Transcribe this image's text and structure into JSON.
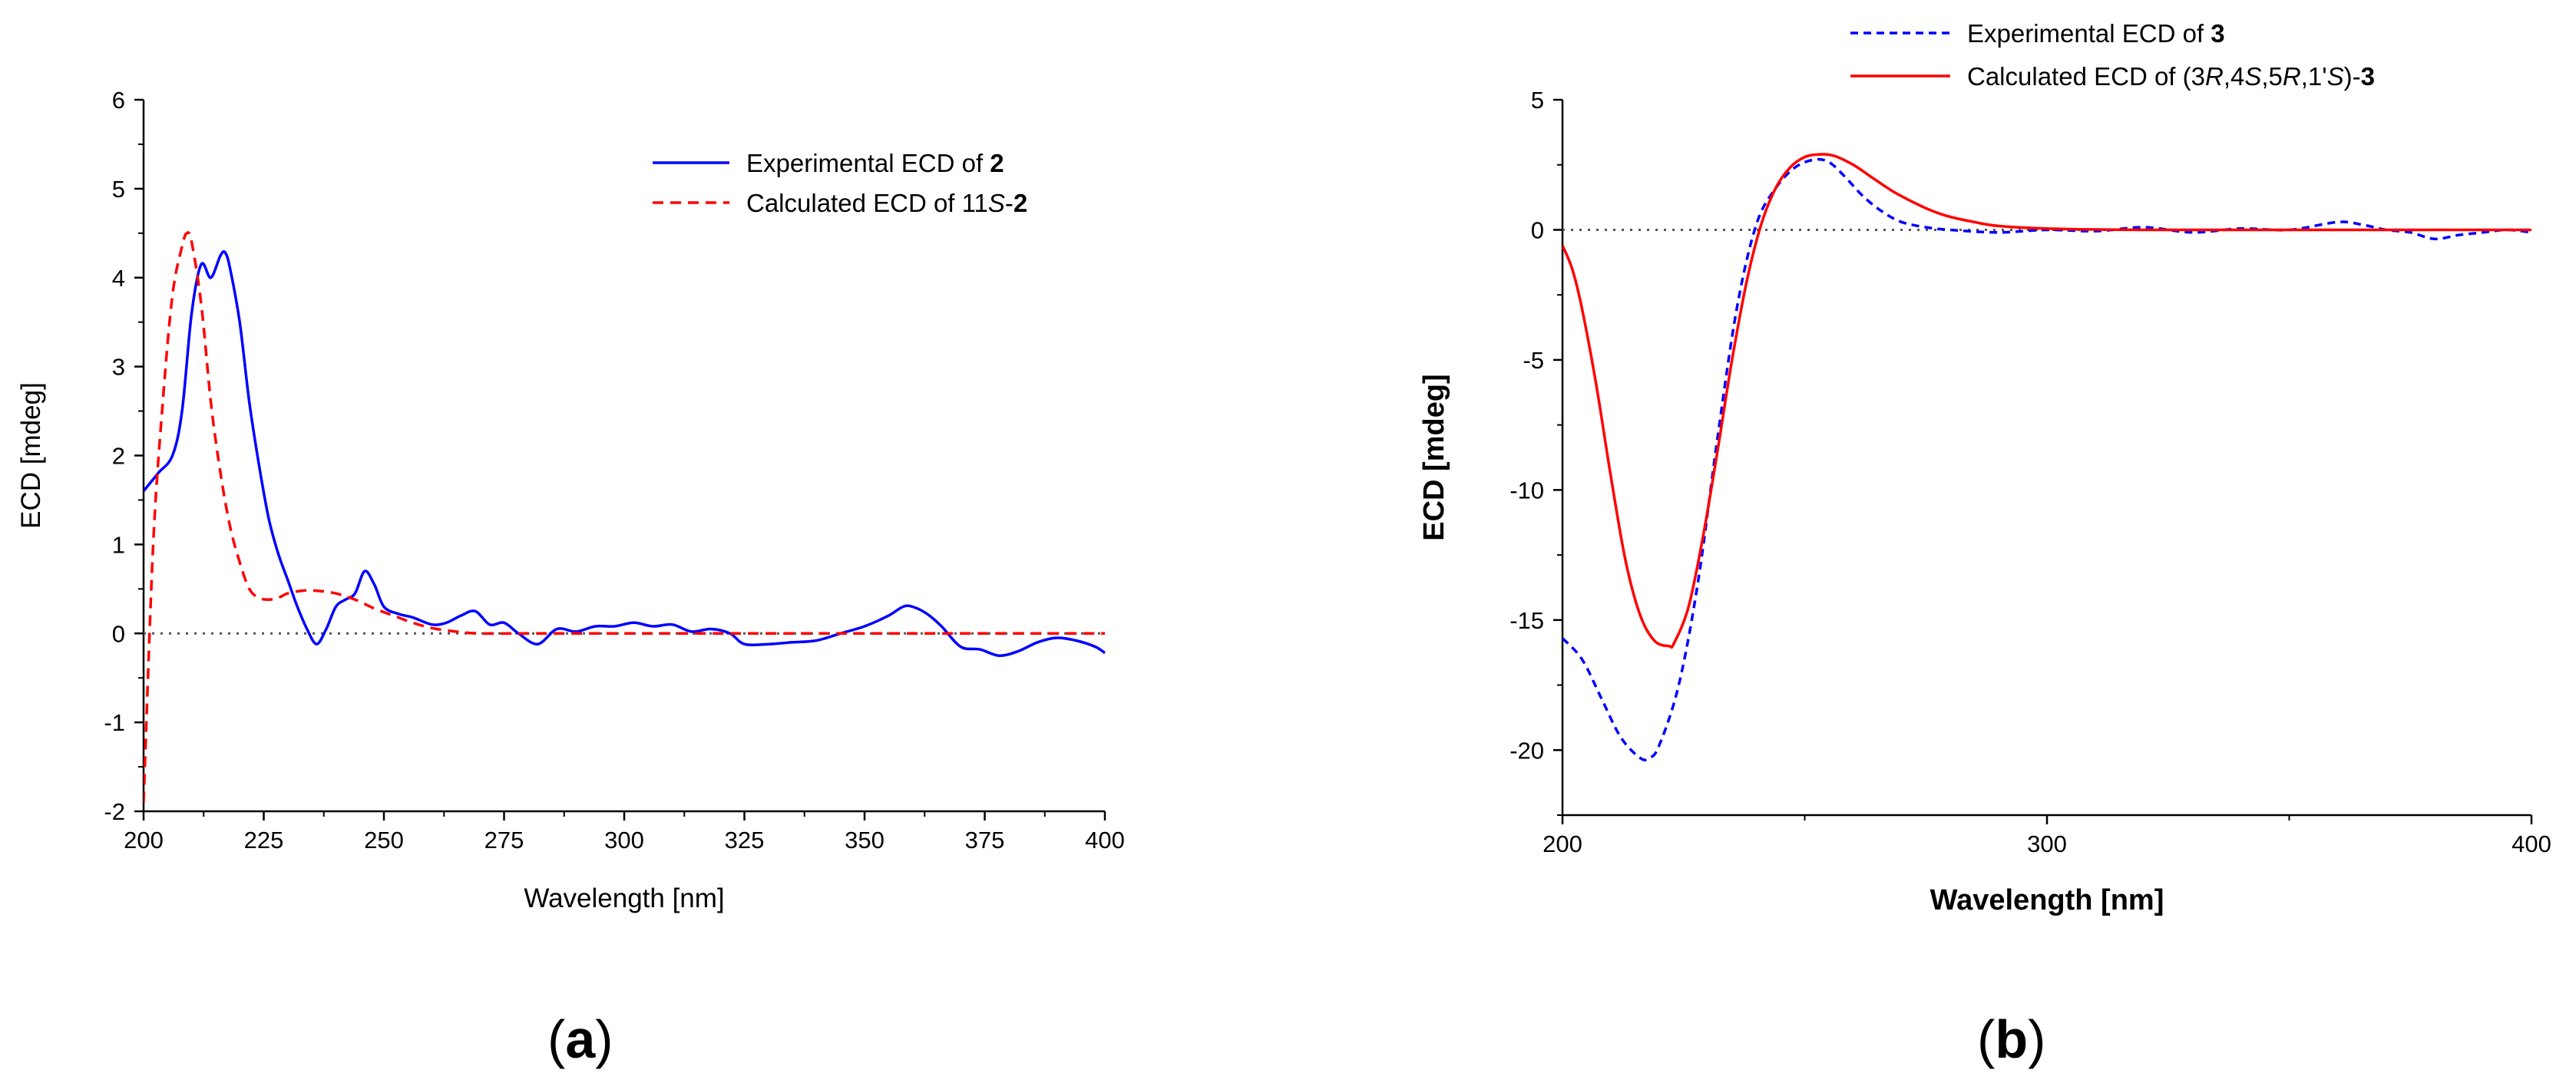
{
  "chart_data": [
    {
      "panel": "(a)",
      "panel_label_parts": [
        "(",
        "a",
        ")"
      ],
      "type": "line",
      "xlabel": "Wavelength [nm]",
      "ylabel": "ECD [mdeg]",
      "xlim": [
        200,
        400
      ],
      "ylim": [
        -2,
        6
      ],
      "xticks": [
        200,
        225,
        250,
        275,
        300,
        325,
        350,
        375,
        400
      ],
      "yticks": [
        -2,
        -1,
        0,
        1,
        2,
        3,
        4,
        5,
        6
      ],
      "zero_line": true,
      "grid": false,
      "legend_position": "top-right",
      "series": [
        {
          "name": "Experimental ECD of 2",
          "legend_parts": [
            {
              "t": "Experimental ECD of "
            },
            {
              "t": "2",
              "b": true
            }
          ],
          "color": "#0000ff",
          "style": "solid",
          "x": [
            200,
            203,
            206,
            208,
            210,
            212,
            214,
            216,
            217,
            218,
            220,
            222,
            224,
            226,
            228,
            230,
            232,
            234,
            236,
            238,
            240,
            242,
            244,
            246,
            248,
            250,
            253,
            256,
            260,
            263,
            266,
            269,
            272,
            275,
            278,
            282,
            286,
            290,
            294,
            298,
            302,
            306,
            310,
            314,
            318,
            322,
            325,
            330,
            335,
            340,
            345,
            350,
            355,
            358,
            360,
            363,
            366,
            370,
            374,
            378,
            382,
            386,
            390,
            394,
            398,
            400
          ],
          "y": [
            1.6,
            1.8,
            2.0,
            2.5,
            3.6,
            4.15,
            4.0,
            4.25,
            4.28,
            4.1,
            3.5,
            2.6,
            1.9,
            1.3,
            0.9,
            0.6,
            0.3,
            0.05,
            -0.12,
            0.05,
            0.3,
            0.38,
            0.45,
            0.7,
            0.55,
            0.3,
            0.22,
            0.18,
            0.1,
            0.12,
            0.2,
            0.25,
            0.1,
            0.12,
            0.0,
            -0.12,
            0.05,
            0.02,
            0.08,
            0.08,
            0.12,
            0.08,
            0.1,
            0.02,
            0.05,
            0.0,
            -0.12,
            -0.12,
            -0.1,
            -0.08,
            0.0,
            0.08,
            0.2,
            0.3,
            0.3,
            0.22,
            0.08,
            -0.15,
            -0.18,
            -0.25,
            -0.2,
            -0.1,
            -0.05,
            -0.08,
            -0.15,
            -0.22
          ]
        },
        {
          "name": "Calculated ECD of 11S-2",
          "legend_parts": [
            {
              "t": "Calculated ECD of 11"
            },
            {
              "t": "S",
              "i": true
            },
            {
              "t": "-"
            },
            {
              "t": "2",
              "b": true
            }
          ],
          "color": "#ff0000",
          "style": "dashed",
          "x": [
            200,
            202,
            204,
            206,
            208,
            209,
            210,
            212,
            214,
            216,
            218,
            220,
            222,
            224,
            226,
            228,
            230,
            233,
            236,
            240,
            244,
            248,
            252,
            256,
            260,
            265,
            270,
            280,
            300,
            350,
            400
          ],
          "y": [
            -1.9,
            1.0,
            2.6,
            3.8,
            4.35,
            4.5,
            4.4,
            3.7,
            2.6,
            1.8,
            1.2,
            0.8,
            0.5,
            0.4,
            0.38,
            0.4,
            0.45,
            0.48,
            0.48,
            0.45,
            0.38,
            0.28,
            0.2,
            0.12,
            0.06,
            0.02,
            0.0,
            0.0,
            0.0,
            0.0,
            0.0
          ]
        }
      ]
    },
    {
      "panel": "(b)",
      "panel_label_parts": [
        "(",
        "b",
        ")"
      ],
      "type": "line",
      "xlabel": "Wavelength [nm]",
      "ylabel": "ECD [mdeg]",
      "xlim": [
        200,
        400
      ],
      "ylim": [
        -22.5,
        5
      ],
      "xticks": [
        200,
        300,
        400
      ],
      "yticks": [
        -20,
        -15,
        -10,
        -5,
        0,
        5
      ],
      "zero_line": true,
      "grid": false,
      "legend_position": "top-right",
      "series": [
        {
          "name": "Experimental ECD of 3",
          "legend_parts": [
            {
              "t": "Experimental ECD of "
            },
            {
              "t": "3",
              "b": true
            }
          ],
          "color": "#0000ff",
          "style": "dashed",
          "x": [
            200,
            204,
            208,
            212,
            216,
            218,
            220,
            224,
            228,
            232,
            236,
            240,
            244,
            248,
            252,
            255,
            258,
            262,
            266,
            270,
            275,
            280,
            290,
            300,
            310,
            320,
            330,
            340,
            350,
            360,
            365,
            370,
            375,
            380,
            385,
            390,
            395,
            400
          ],
          "y": [
            -15.7,
            -16.5,
            -18.0,
            -19.5,
            -20.3,
            -20.3,
            -19.8,
            -17.5,
            -13.5,
            -8.0,
            -3.0,
            0.2,
            1.6,
            2.4,
            2.7,
            2.6,
            2.1,
            1.3,
            0.7,
            0.3,
            0.1,
            0.0,
            -0.1,
            0.0,
            -0.05,
            0.1,
            -0.1,
            0.05,
            0.0,
            0.3,
            0.2,
            0.0,
            -0.1,
            -0.35,
            -0.2,
            -0.1,
            0.0,
            -0.1
          ]
        },
        {
          "name": "Calculated ECD of (3R,4S,5R,1'S)-3",
          "legend_parts": [
            {
              "t": "Calculated ECD of (3"
            },
            {
              "t": "R",
              "i": true
            },
            {
              "t": ",4"
            },
            {
              "t": "S",
              "i": true
            },
            {
              "t": ",5"
            },
            {
              "t": "R",
              "i": true
            },
            {
              "t": ",1'"
            },
            {
              "t": "S",
              "i": true
            },
            {
              "t": ")-"
            },
            {
              "t": "3",
              "b": true
            }
          ],
          "color": "#ff0000",
          "style": "solid",
          "x": [
            200,
            202,
            204,
            207,
            210,
            213,
            216,
            219,
            222,
            223,
            226,
            229,
            232,
            235,
            238,
            241,
            244,
            247,
            250,
            253,
            256,
            260,
            264,
            268,
            272,
            276,
            280,
            285,
            290,
            300,
            320,
            350,
            400
          ],
          "y": [
            -0.6,
            -1.5,
            -3.0,
            -6.0,
            -9.5,
            -12.7,
            -14.8,
            -15.8,
            -16.0,
            -15.9,
            -14.5,
            -11.8,
            -8.5,
            -5.0,
            -2.0,
            0.2,
            1.6,
            2.4,
            2.8,
            2.9,
            2.85,
            2.5,
            2.0,
            1.5,
            1.1,
            0.75,
            0.5,
            0.3,
            0.15,
            0.05,
            0.0,
            0.0,
            0.0
          ]
        }
      ]
    }
  ]
}
